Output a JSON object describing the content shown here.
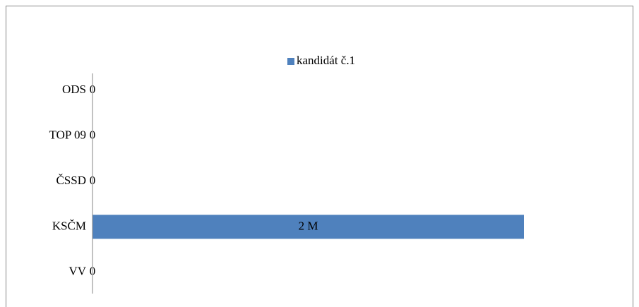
{
  "chart_data": {
    "type": "bar",
    "orientation": "horizontal",
    "categories": [
      "ODS",
      "TOP 09",
      "ČSSD",
      "KSČM",
      "VV"
    ],
    "series": [
      {
        "name": "kandidát č.1",
        "color": "#4f81bd",
        "values": [
          0,
          0,
          0,
          2000000,
          0
        ],
        "value_labels": [
          "0",
          "0",
          "0",
          "2 M",
          "0"
        ]
      }
    ],
    "xlim": [
      0,
      2000000
    ],
    "legend": "top"
  }
}
